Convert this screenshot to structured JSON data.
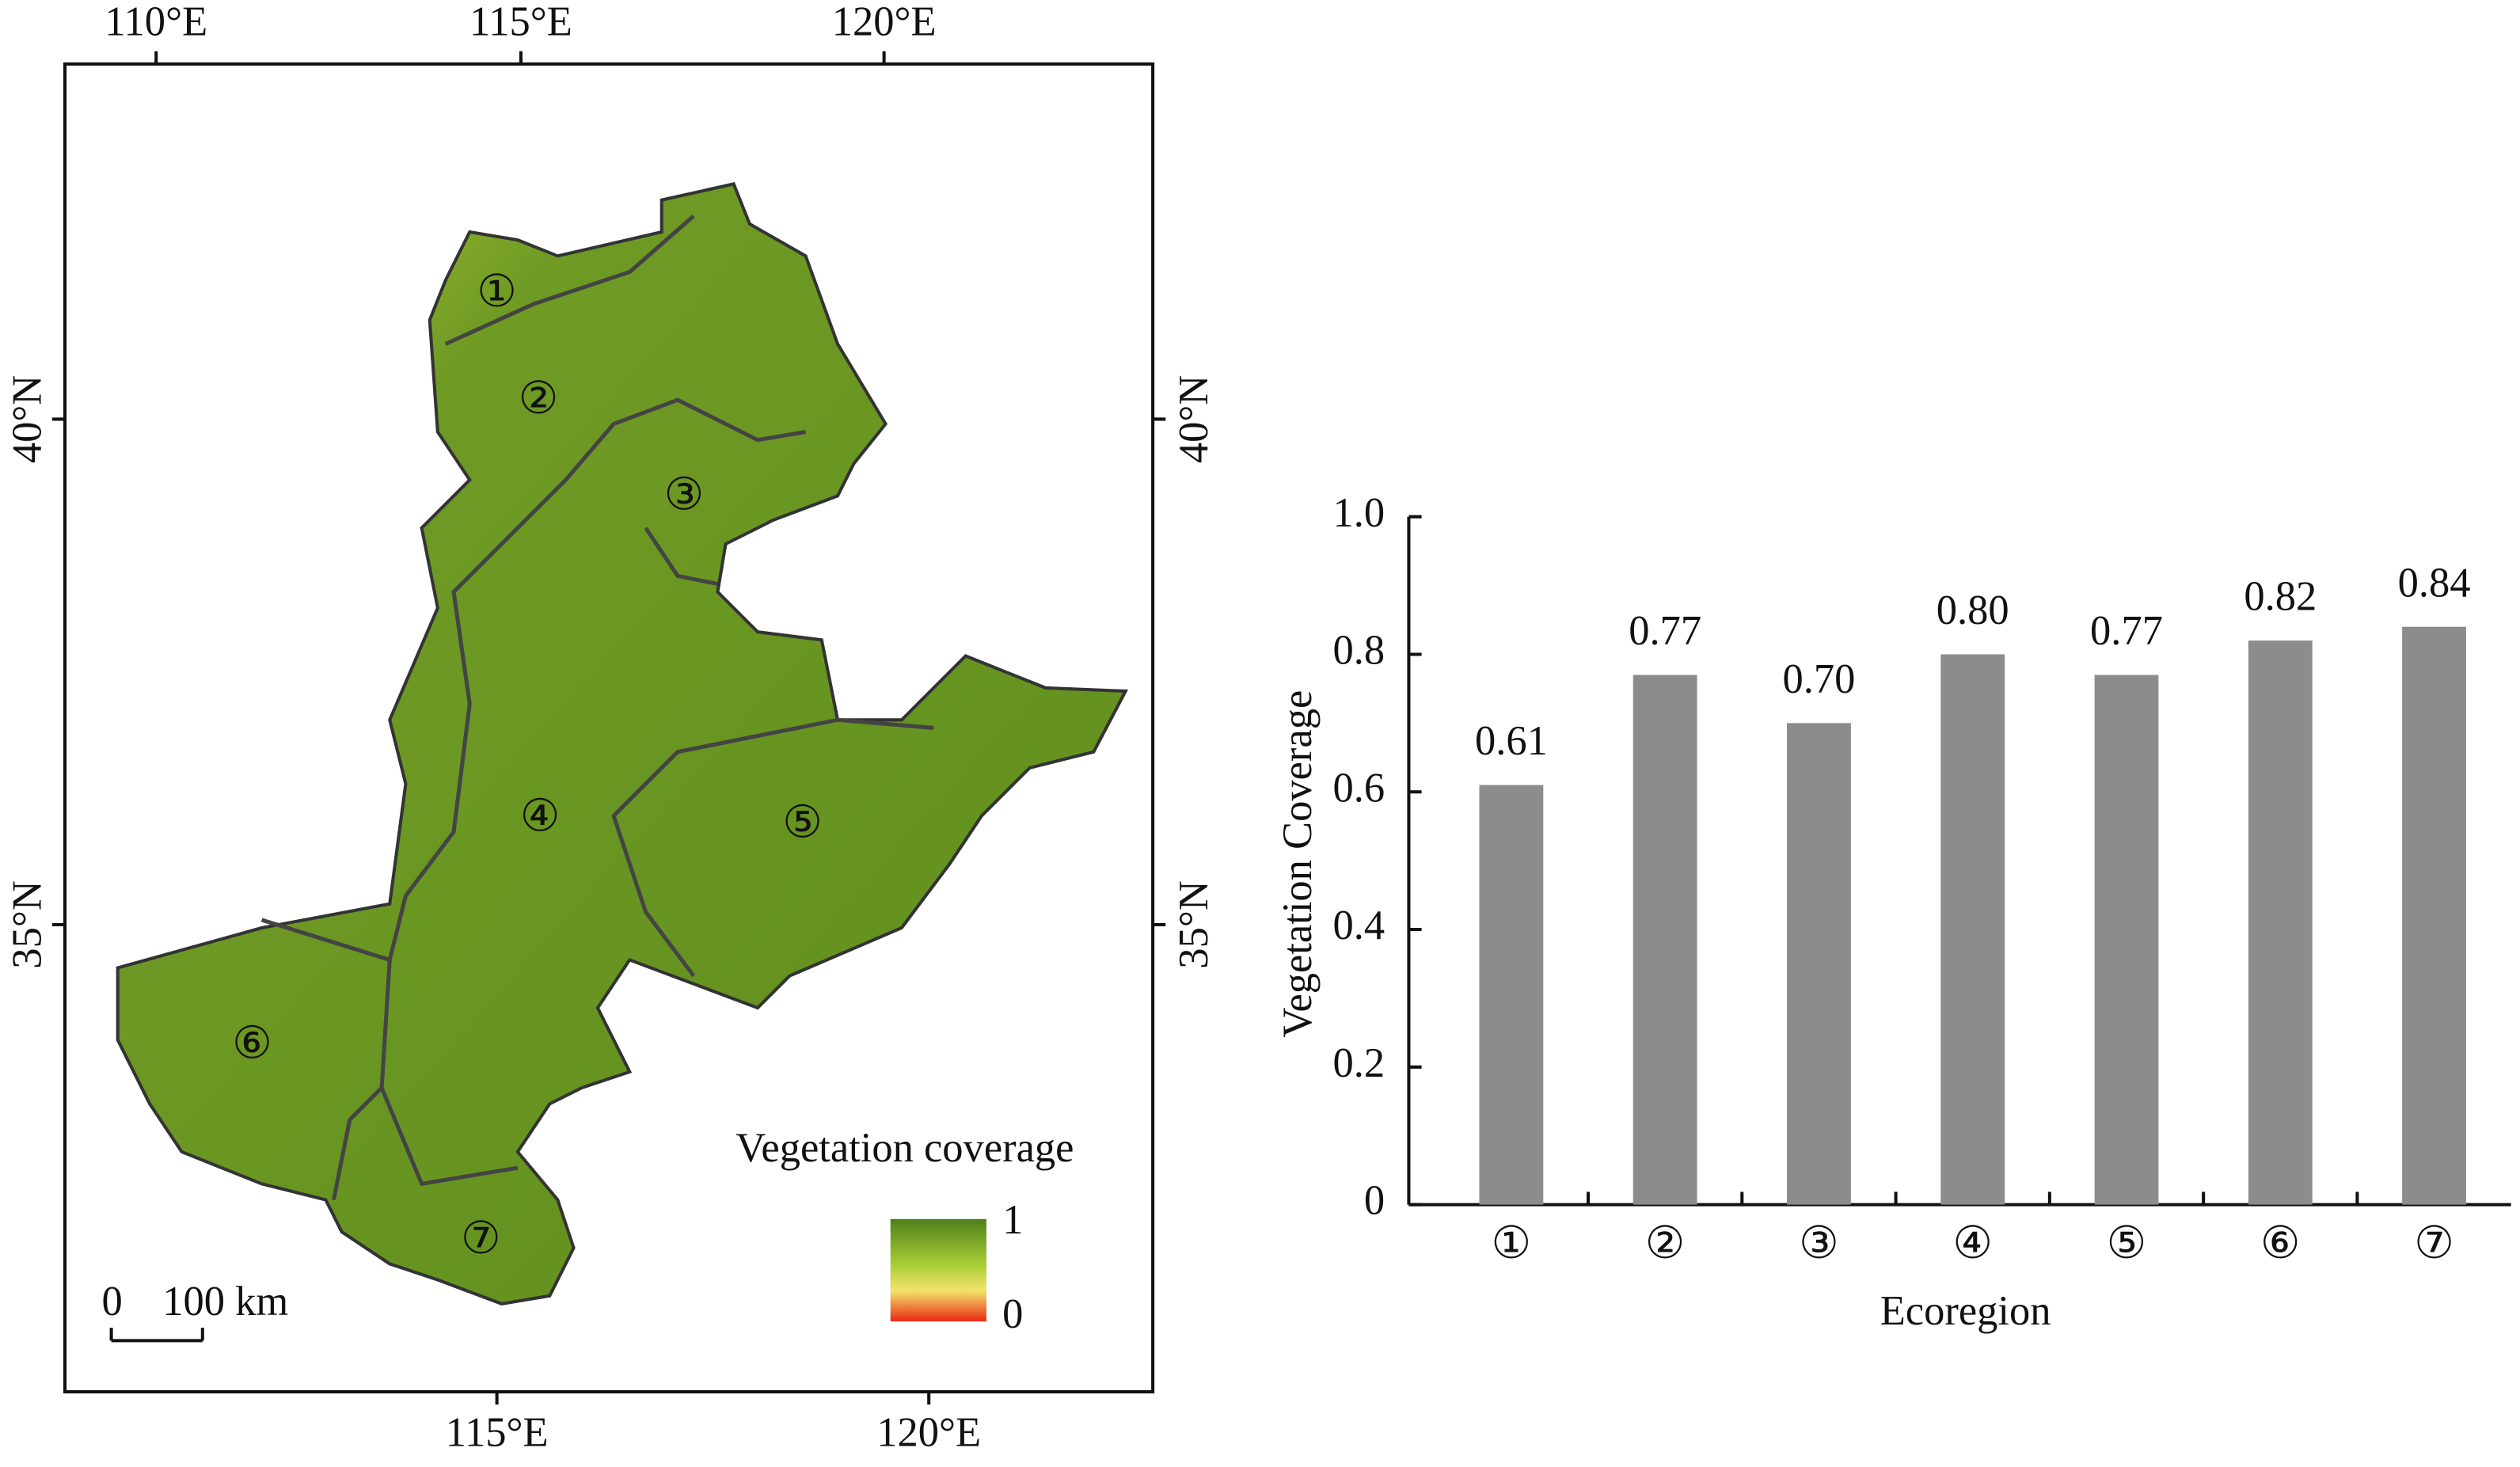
{
  "map": {
    "lon_top": [
      "110°E",
      "115°E",
      "120°E"
    ],
    "lon_bottom": [
      "115°E",
      "120°E"
    ],
    "lat_left": [
      "40°N",
      "35°N"
    ],
    "lat_right": [
      "40°N",
      "35°N"
    ],
    "regions": [
      "①",
      "②",
      "③",
      "④",
      "⑤",
      "⑥",
      "⑦"
    ],
    "legend_title": "Vegetation coverage",
    "legend_max": "1",
    "legend_min": "0",
    "scale_zero": "0",
    "scale_label": "100 km"
  },
  "chart_data": {
    "type": "bar",
    "categories": [
      "①",
      "②",
      "③",
      "④",
      "⑤",
      "⑥",
      "⑦"
    ],
    "values": [
      0.61,
      0.77,
      0.7,
      0.8,
      0.77,
      0.82,
      0.84
    ],
    "value_labels": [
      "0.61",
      "0.77",
      "0.70",
      "0.80",
      "0.77",
      "0.82",
      "0.84"
    ],
    "color": "#8c8c8c",
    "ylim": [
      0,
      1
    ],
    "yticks": [
      0,
      0.2,
      0.4,
      0.6,
      0.8,
      {
        "value": 1,
        "label": "1.0"
      }
    ],
    "y_label": "Vegetation Coverage",
    "x_label": "Ecoregion"
  }
}
